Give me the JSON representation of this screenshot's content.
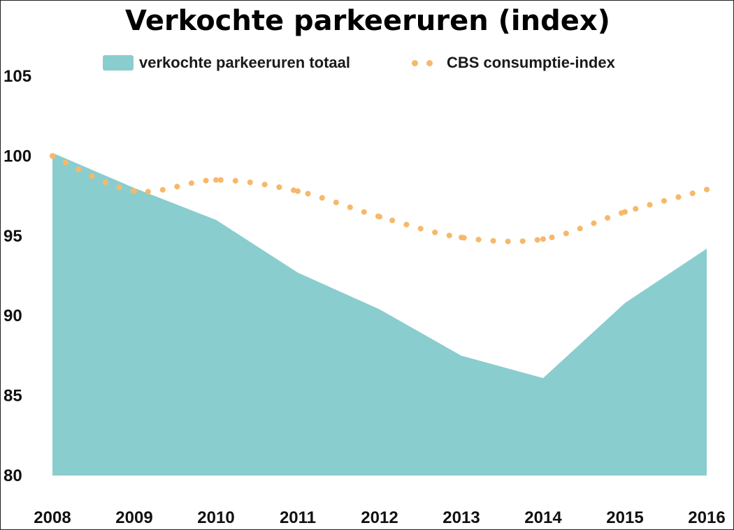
{
  "chart_data": {
    "type": "area",
    "title": "Verkochte parkeeruren (index)",
    "categories": [
      "2008",
      "2009",
      "2010",
      "2011",
      "2012",
      "2013",
      "2014",
      "2015",
      "2016"
    ],
    "series": [
      {
        "name": "verkochte parkeeruren totaal",
        "style": "area",
        "color": "#8ACDCE",
        "values": [
          100.2,
          98.0,
          96.0,
          92.7,
          90.4,
          87.5,
          86.1,
          90.8,
          94.2
        ]
      },
      {
        "name": "CBS consumptie-index",
        "style": "dotted-line",
        "color": "#F7B86A",
        "values": [
          100.0,
          97.8,
          98.5,
          97.8,
          96.2,
          94.9,
          94.8,
          96.5,
          97.9
        ]
      }
    ],
    "xlabel": "",
    "ylabel": "",
    "ylim": [
      80,
      105
    ],
    "yticks": [
      80,
      85,
      90,
      95,
      100,
      105
    ],
    "grid": false,
    "legend_position": "top"
  }
}
